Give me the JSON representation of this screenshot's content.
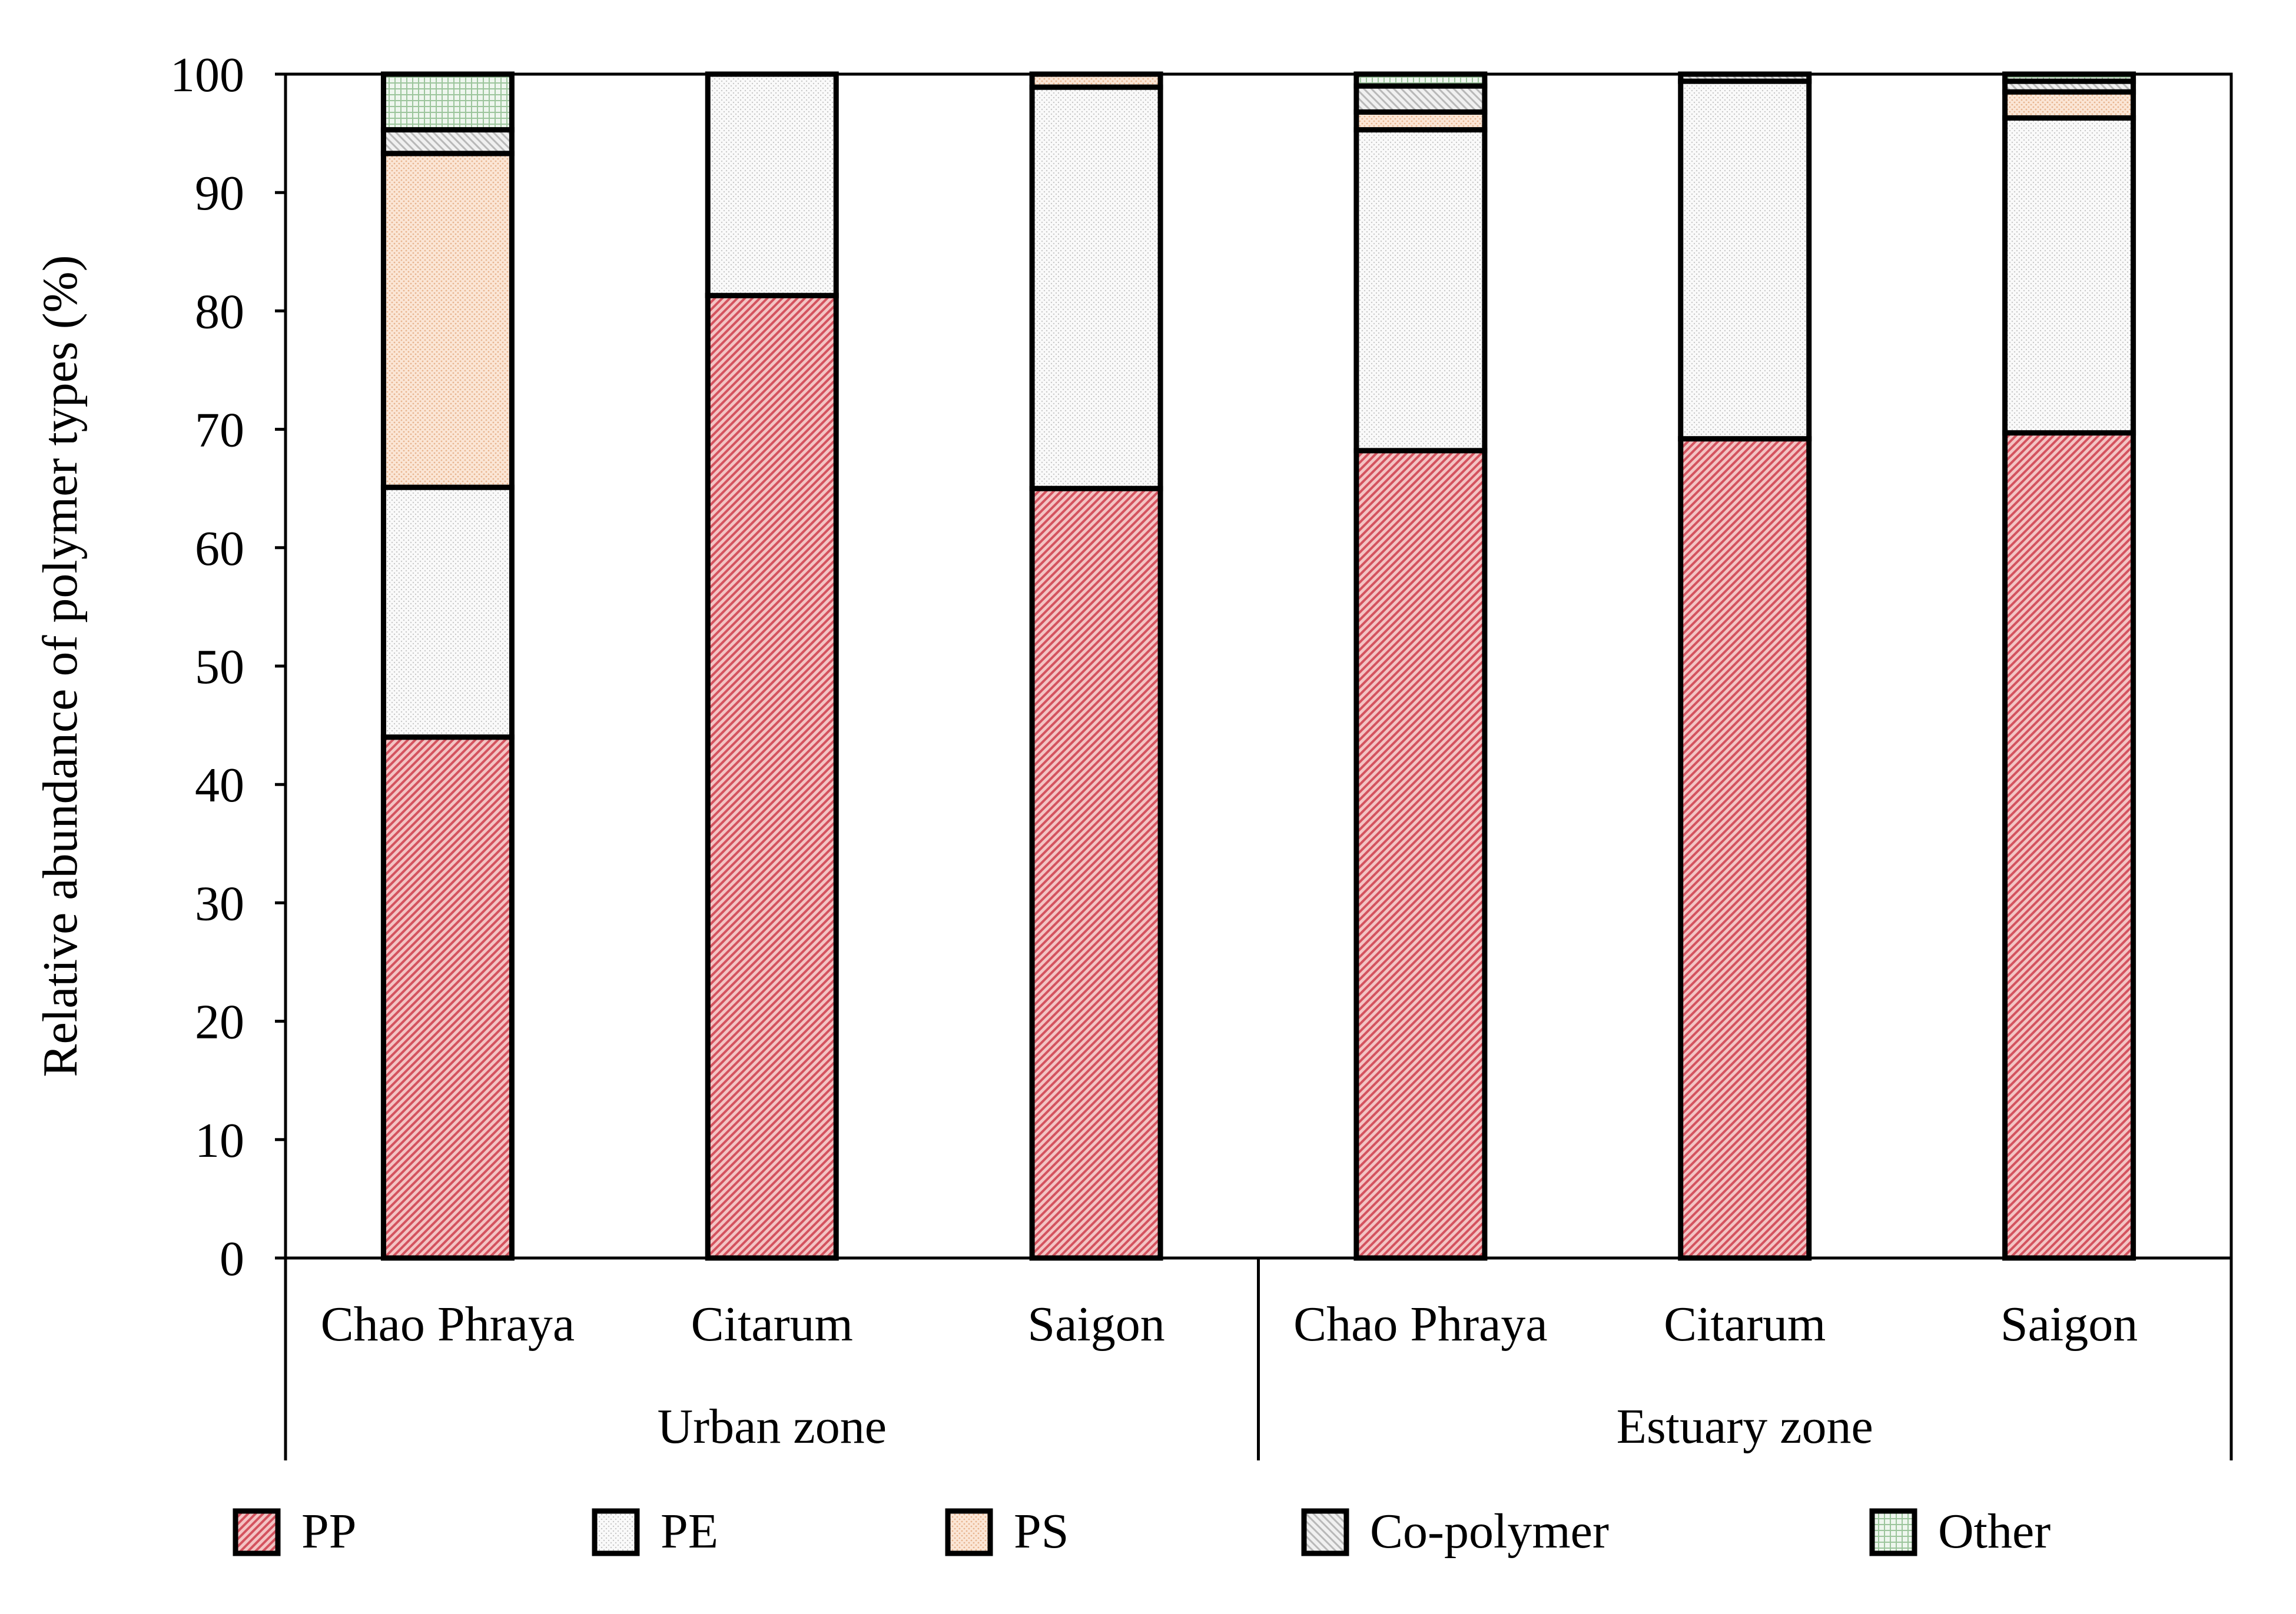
{
  "chart_data": {
    "type": "stacked-bar",
    "title": "",
    "xlabel": "",
    "ylabel": "Relative abundance of polymer types (%)",
    "ylim": [
      0,
      100
    ],
    "yticks": [
      0,
      10,
      20,
      30,
      40,
      50,
      60,
      70,
      80,
      90,
      100
    ],
    "grid": false,
    "legend_position": "bottom",
    "groups": [
      {
        "label": "Urban zone",
        "categories": [
          "Chao Phraya",
          "Citarum",
          "Saigon"
        ]
      },
      {
        "label": "Estuary zone",
        "categories": [
          "Chao Phraya",
          "Citarum",
          "Saigon"
        ]
      }
    ],
    "categories": [
      "Chao Phraya",
      "Citarum",
      "Saigon",
      "Chao Phraya",
      "Citarum",
      "Saigon"
    ],
    "series": [
      {
        "name": "PP",
        "color": "#e37a82",
        "values": [
          44.0,
          81.3,
          65.0,
          68.2,
          69.2,
          69.7
        ]
      },
      {
        "name": "PE",
        "color": "#f4f4f4",
        "values": [
          21.1,
          18.7,
          33.9,
          27.1,
          30.2,
          26.6
        ]
      },
      {
        "name": "PS",
        "color": "#f5d4b8",
        "values": [
          28.2,
          0,
          1.1,
          1.5,
          0,
          2.2
        ]
      },
      {
        "name": "Co-polymer",
        "color": "#d9d9d9",
        "values": [
          2.0,
          0,
          0,
          2.2,
          0.6,
          0.9
        ]
      },
      {
        "name": "Other",
        "color": "#bcdcbc",
        "values": [
          4.7,
          0,
          0,
          1.0,
          0,
          0.6
        ]
      }
    ]
  }
}
